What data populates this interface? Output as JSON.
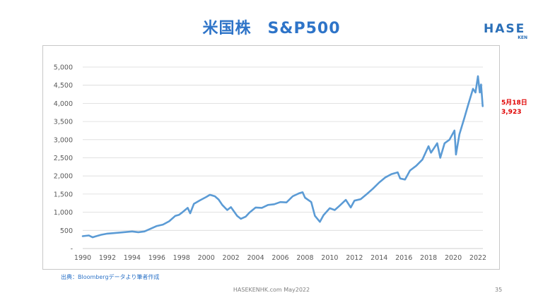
{
  "header": {
    "title": "米国株　S&P500"
  },
  "logo": {
    "main": "HASE",
    "sub": "KEN"
  },
  "annotation": {
    "date": "5月18日",
    "value": "3,923"
  },
  "source_note": "出典：Bloombergデータより筆者作成",
  "footer": {
    "text": "HASEKENHK.com  May2022",
    "page": "35"
  },
  "colors": {
    "line": "#5b9bd5",
    "title": "#2e74c8",
    "annotation": "#e00000"
  },
  "chart_data": {
    "type": "line",
    "title": "米国株　S&P500",
    "xlabel": "",
    "ylabel": "",
    "xlim": [
      1990,
      2022.4
    ],
    "ylim": [
      0,
      5000
    ],
    "y_ticks": [
      0,
      500,
      1000,
      1500,
      2000,
      2500,
      3000,
      3500,
      4000,
      4500,
      5000
    ],
    "y_tick_labels": [
      "-",
      "500",
      "1,000",
      "1,500",
      "2,000",
      "2,500",
      "3,000",
      "3,500",
      "4,000",
      "4,500",
      "5,000"
    ],
    "x_ticks": [
      1990,
      1992,
      1994,
      1996,
      1998,
      2000,
      2002,
      2004,
      2006,
      2008,
      2010,
      2012,
      2014,
      2016,
      2018,
      2020,
      2022
    ],
    "grid": "horizontal",
    "series": [
      {
        "name": "",
        "points": [
          [
            1990.0,
            340
          ],
          [
            1990.5,
            360
          ],
          [
            1990.8,
            310
          ],
          [
            1991.0,
            330
          ],
          [
            1991.5,
            380
          ],
          [
            1992.0,
            410
          ],
          [
            1993.0,
            440
          ],
          [
            1994.0,
            470
          ],
          [
            1994.5,
            450
          ],
          [
            1995.0,
            470
          ],
          [
            1996.0,
            620
          ],
          [
            1996.5,
            660
          ],
          [
            1997.0,
            750
          ],
          [
            1997.5,
            900
          ],
          [
            1997.8,
            930
          ],
          [
            1998.0,
            980
          ],
          [
            1998.5,
            1120
          ],
          [
            1998.7,
            970
          ],
          [
            1999.0,
            1230
          ],
          [
            1999.5,
            1330
          ],
          [
            2000.0,
            1420
          ],
          [
            2000.3,
            1480
          ],
          [
            2000.7,
            1440
          ],
          [
            2001.0,
            1350
          ],
          [
            2001.3,
            1200
          ],
          [
            2001.7,
            1060
          ],
          [
            2002.0,
            1140
          ],
          [
            2002.5,
            900
          ],
          [
            2002.8,
            820
          ],
          [
            2003.2,
            880
          ],
          [
            2003.5,
            990
          ],
          [
            2004.0,
            1130
          ],
          [
            2004.5,
            1120
          ],
          [
            2005.0,
            1200
          ],
          [
            2005.5,
            1220
          ],
          [
            2006.0,
            1280
          ],
          [
            2006.5,
            1270
          ],
          [
            2007.0,
            1440
          ],
          [
            2007.5,
            1520
          ],
          [
            2007.8,
            1550
          ],
          [
            2008.0,
            1400
          ],
          [
            2008.5,
            1280
          ],
          [
            2008.8,
            900
          ],
          [
            2009.2,
            735
          ],
          [
            2009.5,
            920
          ],
          [
            2010.0,
            1110
          ],
          [
            2010.4,
            1060
          ],
          [
            2010.8,
            1180
          ],
          [
            2011.3,
            1340
          ],
          [
            2011.7,
            1130
          ],
          [
            2012.0,
            1320
          ],
          [
            2012.5,
            1360
          ],
          [
            2013.0,
            1500
          ],
          [
            2013.5,
            1650
          ],
          [
            2014.0,
            1820
          ],
          [
            2014.5,
            1960
          ],
          [
            2015.0,
            2050
          ],
          [
            2015.5,
            2100
          ],
          [
            2015.7,
            1930
          ],
          [
            2016.1,
            1900
          ],
          [
            2016.5,
            2150
          ],
          [
            2017.0,
            2280
          ],
          [
            2017.5,
            2450
          ],
          [
            2018.0,
            2820
          ],
          [
            2018.2,
            2640
          ],
          [
            2018.7,
            2900
          ],
          [
            2018.95,
            2500
          ],
          [
            2019.3,
            2900
          ],
          [
            2019.7,
            3000
          ],
          [
            2020.1,
            3250
          ],
          [
            2020.22,
            2590
          ],
          [
            2020.5,
            3150
          ],
          [
            2020.9,
            3600
          ],
          [
            2021.2,
            3950
          ],
          [
            2021.6,
            4400
          ],
          [
            2021.8,
            4300
          ],
          [
            2022.0,
            4750
          ],
          [
            2022.15,
            4300
          ],
          [
            2022.25,
            4520
          ],
          [
            2022.38,
            3923
          ]
        ]
      }
    ]
  }
}
